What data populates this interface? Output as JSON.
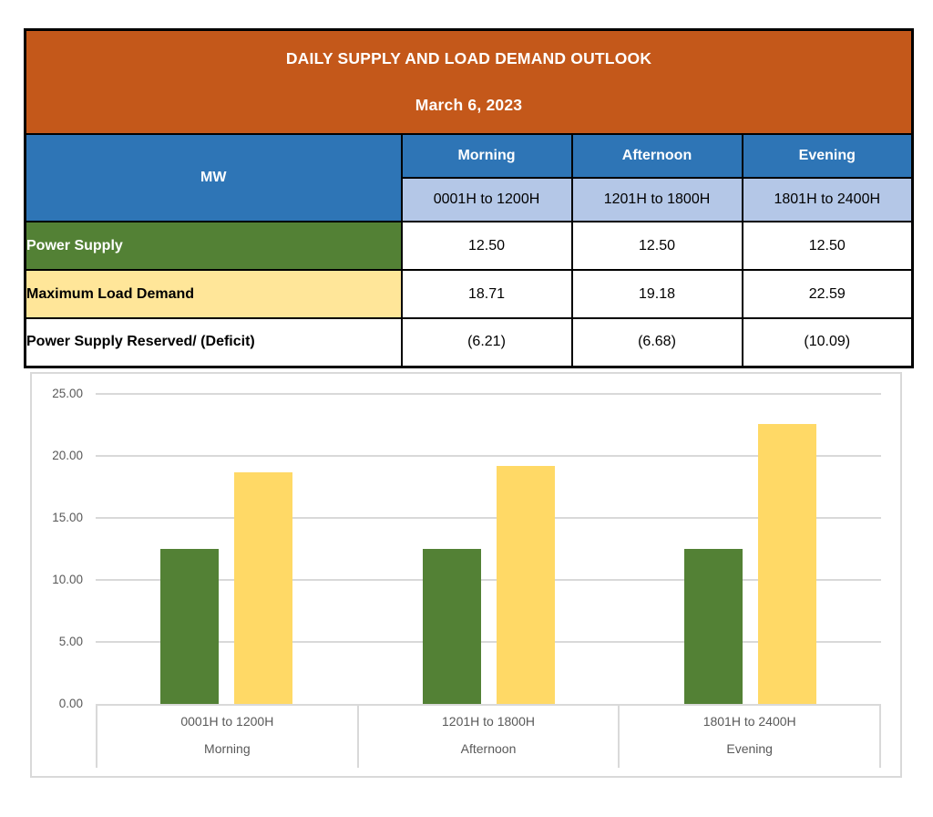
{
  "header": {
    "title": "DAILY SUPPLY AND LOAD DEMAND OUTLOOK",
    "date": "March 6, 2023"
  },
  "table": {
    "unit_label": "MW",
    "columns": [
      {
        "period": "Morning",
        "hours": "0001H to 1200H"
      },
      {
        "period": "Afternoon",
        "hours": "1201H to 1800H"
      },
      {
        "period": "Evening",
        "hours": "1801H to 2400H"
      }
    ],
    "rows": [
      {
        "label": "Power Supply",
        "values": [
          "12.50",
          "12.50",
          "12.50"
        ]
      },
      {
        "label": "Maximum Load Demand",
        "values": [
          "18.71",
          "19.18",
          "22.59"
        ]
      },
      {
        "label": "Power Supply Reserved/ (Deficit)",
        "values": [
          "(6.21)",
          "(6.68)",
          "(10.09)"
        ]
      }
    ]
  },
  "colors": {
    "header_orange": "#C4581A",
    "header_blue": "#2E75B6",
    "subheader_light_blue": "#B4C7E7",
    "supply_green": "#538135",
    "demand_yellow_row": "#FFE699",
    "demand_yellow_bar": "#FFD966",
    "table_border": "#000000",
    "chart_line": "#D9D9D9",
    "axis_text": "#595959"
  },
  "chart_data": {
    "type": "bar",
    "title": "",
    "xlabel": "",
    "ylabel": "",
    "categories": [
      "0001H to 1200H",
      "1201H to 1800H",
      "1801H to 2400H"
    ],
    "category_sublabels": [
      "Morning",
      "Afternoon",
      "Evening"
    ],
    "series": [
      {
        "name": "Power Supply",
        "color": "#538135",
        "values": [
          12.5,
          12.5,
          12.5
        ]
      },
      {
        "name": "Maximum Load Demand",
        "color": "#FFD966",
        "values": [
          18.71,
          19.18,
          22.59
        ]
      }
    ],
    "ylim": [
      0,
      25
    ],
    "ytick_step": 5,
    "ytick_decimals": 2,
    "grid": true,
    "legend": "none"
  }
}
